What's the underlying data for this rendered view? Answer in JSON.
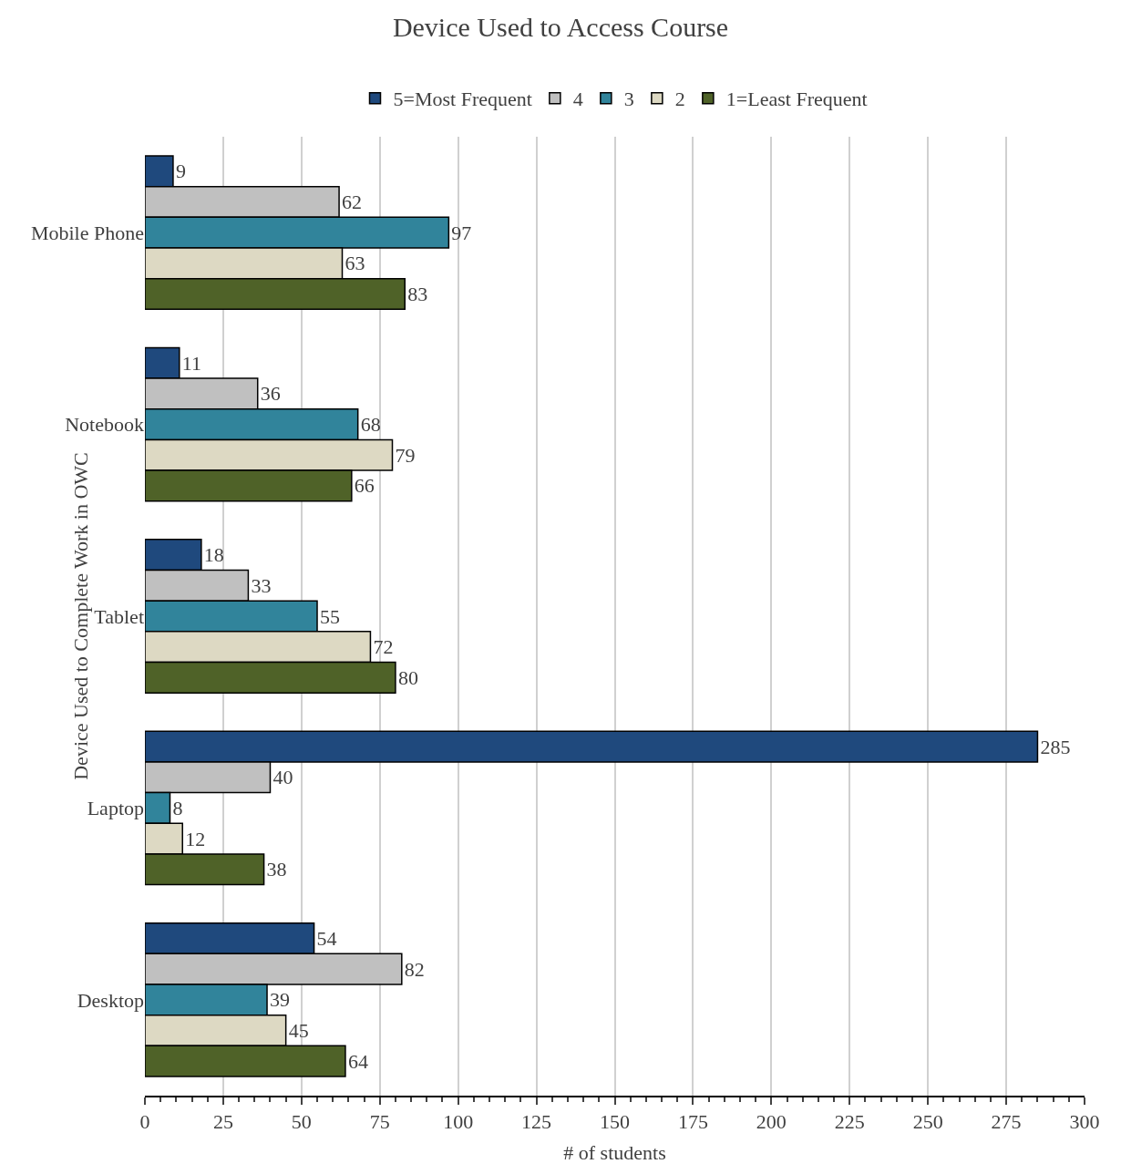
{
  "chart_data": {
    "type": "bar",
    "orientation": "horizontal",
    "title": "Device Used to Access Course",
    "xlabel": "# of students",
    "ylabel": "Device Used to Complete Work in OWC",
    "categories": [
      "Mobile Phone",
      "Notebook",
      "Tablet",
      "Laptop",
      "Desktop"
    ],
    "series": [
      {
        "name": "5=Most Frequent",
        "color": "#1f497d",
        "values": [
          9,
          11,
          18,
          285,
          54
        ]
      },
      {
        "name": "4",
        "color": "#c0c0c0",
        "values": [
          62,
          36,
          33,
          40,
          82
        ]
      },
      {
        "name": "3",
        "color": "#31849b",
        "values": [
          97,
          68,
          55,
          8,
          39
        ]
      },
      {
        "name": "2",
        "color": "#ddd9c3",
        "values": [
          63,
          79,
          72,
          12,
          45
        ]
      },
      {
        "name": "1=Least Frequent",
        "color": "#4f6228",
        "values": [
          83,
          66,
          80,
          38,
          64
        ]
      }
    ],
    "xlim": [
      0,
      300
    ],
    "xticks": [
      0,
      25,
      50,
      75,
      100,
      125,
      150,
      175,
      200,
      225,
      250,
      275,
      300
    ],
    "grid": "x",
    "legend": "top",
    "data_labels": true
  }
}
